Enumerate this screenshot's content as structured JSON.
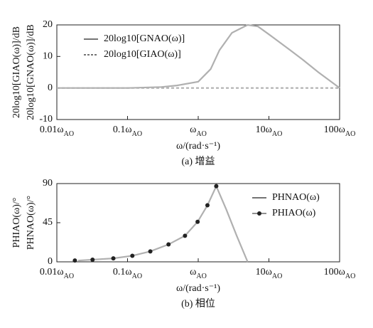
{
  "chart_data": [
    {
      "type": "line",
      "caption": "(a) 增益",
      "xlabel": "ω/(rad·s⁻¹)",
      "ylabel": [
        "20log10[GIAO(ω)]/dB",
        "20log10[GNAO(ω)]/dB"
      ],
      "xscale": "log",
      "xlim": [
        0.01,
        100
      ],
      "ylim": [
        -10,
        20
      ],
      "yticks": [
        -10,
        0,
        10,
        20
      ],
      "xticks": [
        {
          "value": 0.01,
          "label": "0.01ω",
          "sub": "AO"
        },
        {
          "value": 0.1,
          "label": "0.1ω",
          "sub": "AO"
        },
        {
          "value": 1,
          "label": "ω",
          "sub": "AO"
        },
        {
          "value": 10,
          "label": "10ω",
          "sub": "AO"
        },
        {
          "value": 100,
          "label": "100ω",
          "sub": "AO"
        }
      ],
      "legend": "upper left",
      "series": [
        {
          "name": "20log10[GNAO(ω)]",
          "color": "#b0b0b0",
          "style": "solid",
          "x": [
            0.01,
            0.1,
            0.3,
            0.5,
            1,
            1.5,
            2,
            3,
            5,
            7,
            10,
            20,
            30,
            50,
            100
          ],
          "values": [
            0,
            0,
            0.3,
            0.8,
            2,
            6,
            12,
            17.5,
            20,
            19.5,
            17,
            12,
            9,
            5,
            0
          ]
        },
        {
          "name": "20log10[GIAO(ω)]",
          "color": "#b0b0b0",
          "style": "dashed",
          "x": [
            0.01,
            100
          ],
          "values": [
            0,
            0
          ]
        }
      ]
    },
    {
      "type": "line",
      "caption": "(b) 相位",
      "xlabel": "ω/(rad·s⁻¹)",
      "ylabel": [
        "PHIAO(ω)/°",
        "PHNAO(ω)/°"
      ],
      "xscale": "log",
      "xlim": [
        0.01,
        100
      ],
      "ylim": [
        0,
        90
      ],
      "yticks": [
        0,
        45,
        90
      ],
      "xticks": [
        {
          "value": 0.01,
          "label": "0.01ω",
          "sub": "AO"
        },
        {
          "value": 0.1,
          "label": "0.1ω",
          "sub": "AO"
        },
        {
          "value": 1,
          "label": "ω",
          "sub": "AO"
        },
        {
          "value": 10,
          "label": "10ω",
          "sub": "AO"
        },
        {
          "value": 100,
          "label": "100ω",
          "sub": "AO"
        }
      ],
      "legend": "upper right",
      "series": [
        {
          "name": "PHNAO(ω)",
          "color": "#b0b0b0",
          "style": "solid",
          "x": [
            0.02,
            0.032,
            0.063,
            0.117,
            0.21,
            0.38,
            0.65,
            0.98,
            1.35,
            1.8,
            2.5,
            3.5,
            5
          ],
          "values": [
            1.5,
            2.5,
            4,
            7,
            12,
            20,
            30,
            46,
            65,
            87,
            60,
            30,
            0
          ]
        },
        {
          "name": "PHIAO(ω)",
          "color": "#222222",
          "style": "none",
          "marker": "dot",
          "x": [
            0.018,
            0.032,
            0.063,
            0.117,
            0.21,
            0.38,
            0.65,
            0.98,
            1.35,
            1.8
          ],
          "values": [
            1.5,
            2.5,
            4,
            7,
            12,
            20,
            30,
            46,
            65,
            87
          ]
        }
      ]
    }
  ]
}
